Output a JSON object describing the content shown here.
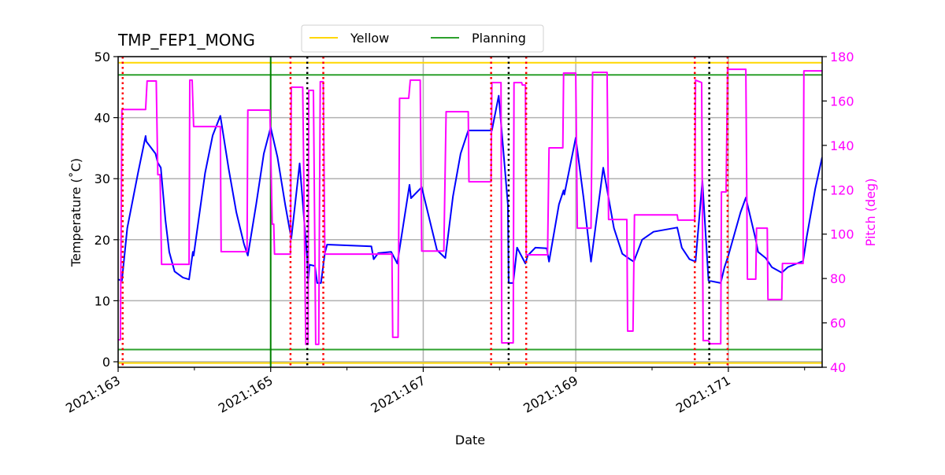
{
  "chart_data": {
    "type": "line",
    "title": "TMP_FEP1_MONG",
    "xlabel": "Date",
    "ylabel": "Temperature ($^\\circ$C)",
    "ylabel_display": "Temperature (˚C)",
    "y2label": "Pitch (deg)",
    "xlim": [
      163.0,
      172.23
    ],
    "ylim": [
      -0.9,
      50
    ],
    "y2lim": [
      40,
      180
    ],
    "grid": true,
    "legend_placement": "top-center",
    "x_ticks": [
      {
        "value": 163,
        "label": "2021:163"
      },
      {
        "value": 165,
        "label": "2021:165"
      },
      {
        "value": 167,
        "label": "2021:167"
      },
      {
        "value": 169,
        "label": "2021:169"
      },
      {
        "value": 171,
        "label": "2021:171"
      }
    ],
    "x_minor_ticks": [
      164,
      166,
      168,
      170,
      172
    ],
    "y_ticks": [
      0,
      10,
      20,
      30,
      40,
      50
    ],
    "y2_ticks": [
      40,
      60,
      80,
      100,
      120,
      140,
      160,
      180
    ],
    "colors": {
      "temperature": "#0000ff",
      "pitch": "#ff00ff",
      "yellow": "#ffd700",
      "planning": "#2ca02c",
      "grid": "#b0b0b0",
      "red_marker": "#ff0000",
      "black_marker": "#000000",
      "green_marker": "#008000"
    },
    "limits": [
      {
        "name": "Yellow",
        "color": "#ffd700",
        "values": [
          49,
          -0.2
        ]
      },
      {
        "name": "Planning",
        "color": "#2ca02c",
        "values": [
          47,
          2
        ]
      }
    ],
    "vertical_markers": {
      "red_dotted": [
        163.06,
        165.26,
        165.69,
        167.89,
        168.35,
        170.56,
        170.99
      ],
      "black_dotted": [
        165.48,
        168.12,
        170.75
      ],
      "green_solid": [
        165.0
      ]
    },
    "series": [
      {
        "axis": "left",
        "color": "#0000ff",
        "points": [
          [
            163.0,
            13.5
          ],
          [
            163.05,
            13.3
          ],
          [
            163.12,
            21.9
          ],
          [
            163.26,
            30.9
          ],
          [
            163.36,
            37.0
          ],
          [
            163.37,
            36.1
          ],
          [
            163.49,
            34.1
          ],
          [
            163.52,
            32.6
          ],
          [
            163.56,
            31.8
          ],
          [
            163.62,
            23.2
          ],
          [
            163.67,
            18.0
          ],
          [
            163.74,
            14.8
          ],
          [
            163.85,
            13.8
          ],
          [
            163.93,
            13.5
          ],
          [
            163.98,
            18.0
          ],
          [
            163.99,
            17.4
          ],
          [
            164.14,
            30.9
          ],
          [
            164.24,
            37.1
          ],
          [
            164.34,
            40.3
          ],
          [
            164.45,
            31.6
          ],
          [
            164.55,
            24.5
          ],
          [
            164.65,
            19.3
          ],
          [
            164.7,
            17.4
          ],
          [
            164.81,
            25.8
          ],
          [
            164.91,
            34.1
          ],
          [
            165.0,
            38.4
          ],
          [
            165.09,
            33.5
          ],
          [
            165.19,
            25.8
          ],
          [
            165.27,
            20.2
          ],
          [
            165.38,
            32.5
          ],
          [
            165.48,
            16.8
          ],
          [
            165.49,
            12.9
          ],
          [
            165.51,
            15.9
          ],
          [
            165.58,
            15.7
          ],
          [
            165.61,
            12.9
          ],
          [
            165.66,
            12.9
          ],
          [
            165.71,
            17.8
          ],
          [
            165.74,
            19.2
          ],
          [
            166.32,
            18.9
          ],
          [
            166.35,
            16.8
          ],
          [
            166.41,
            17.8
          ],
          [
            166.58,
            18.0
          ],
          [
            166.66,
            16.1
          ],
          [
            166.82,
            29.0
          ],
          [
            166.84,
            26.8
          ],
          [
            166.98,
            28.6
          ],
          [
            167.11,
            21.9
          ],
          [
            167.18,
            18.3
          ],
          [
            167.29,
            17.0
          ],
          [
            167.39,
            27.1
          ],
          [
            167.49,
            34.1
          ],
          [
            167.59,
            37.9
          ],
          [
            167.9,
            37.9
          ],
          [
            167.99,
            43.6
          ],
          [
            168.11,
            25.8
          ],
          [
            168.12,
            12.9
          ],
          [
            168.18,
            12.9
          ],
          [
            168.23,
            18.7
          ],
          [
            168.34,
            16.1
          ],
          [
            168.37,
            17.4
          ],
          [
            168.47,
            18.7
          ],
          [
            168.62,
            18.6
          ],
          [
            168.65,
            16.4
          ],
          [
            168.78,
            25.8
          ],
          [
            168.84,
            28.1
          ],
          [
            168.85,
            27.4
          ],
          [
            169.0,
            36.7
          ],
          [
            169.1,
            27.1
          ],
          [
            169.2,
            16.4
          ],
          [
            169.36,
            31.8
          ],
          [
            169.5,
            21.9
          ],
          [
            169.61,
            17.7
          ],
          [
            169.71,
            16.8
          ],
          [
            169.76,
            16.4
          ],
          [
            169.87,
            20.0
          ],
          [
            170.02,
            21.3
          ],
          [
            170.33,
            22.0
          ],
          [
            170.39,
            18.7
          ],
          [
            170.49,
            16.8
          ],
          [
            170.57,
            16.4
          ],
          [
            170.66,
            29.6
          ],
          [
            170.74,
            13.3
          ],
          [
            170.9,
            12.9
          ],
          [
            170.95,
            15.5
          ],
          [
            171.0,
            17.4
          ],
          [
            171.16,
            24.5
          ],
          [
            171.23,
            26.9
          ],
          [
            171.36,
            20.0
          ],
          [
            171.39,
            18.0
          ],
          [
            171.49,
            17.0
          ],
          [
            171.57,
            15.5
          ],
          [
            171.7,
            14.6
          ],
          [
            171.78,
            15.5
          ],
          [
            171.98,
            16.5
          ],
          [
            172.03,
            20.6
          ],
          [
            172.14,
            28.4
          ],
          [
            172.23,
            33.5
          ]
        ]
      },
      {
        "axis": "right",
        "color": "#ff00ff",
        "points": [
          [
            163.0,
            52.4
          ],
          [
            163.03,
            52.4
          ],
          [
            163.05,
            156.2
          ],
          [
            163.36,
            156.2
          ],
          [
            163.38,
            169.0
          ],
          [
            163.5,
            169.0
          ],
          [
            163.52,
            126.8
          ],
          [
            163.55,
            126.8
          ],
          [
            163.57,
            86.4
          ],
          [
            163.93,
            86.4
          ],
          [
            163.94,
            169.4
          ],
          [
            163.97,
            169.4
          ],
          [
            163.99,
            148.5
          ],
          [
            164.34,
            148.5
          ],
          [
            164.35,
            92.1
          ],
          [
            164.69,
            92.1
          ],
          [
            164.7,
            155.9
          ],
          [
            164.99,
            155.9
          ],
          [
            165.02,
            104.5
          ],
          [
            165.04,
            104.5
          ],
          [
            165.05,
            91.0
          ],
          [
            165.26,
            91.0
          ],
          [
            165.27,
            166.2
          ],
          [
            165.42,
            166.2
          ],
          [
            165.46,
            50.3
          ],
          [
            165.49,
            50.3
          ],
          [
            165.5,
            164.8
          ],
          [
            165.56,
            164.8
          ],
          [
            165.59,
            50.3
          ],
          [
            165.63,
            50.3
          ],
          [
            165.65,
            168.7
          ],
          [
            165.69,
            168.7
          ],
          [
            165.71,
            91.0
          ],
          [
            166.59,
            91.0
          ],
          [
            166.6,
            53.5
          ],
          [
            166.67,
            53.5
          ],
          [
            166.69,
            161.2
          ],
          [
            166.81,
            161.2
          ],
          [
            166.83,
            169.4
          ],
          [
            166.96,
            169.4
          ],
          [
            166.98,
            92.4
          ],
          [
            167.27,
            92.4
          ],
          [
            167.3,
            155.2
          ],
          [
            167.59,
            155.2
          ],
          [
            167.6,
            123.6
          ],
          [
            167.89,
            123.6
          ],
          [
            167.9,
            168.3
          ],
          [
            168.02,
            168.3
          ],
          [
            168.03,
            51.0
          ],
          [
            168.18,
            51.0
          ],
          [
            168.19,
            168.3
          ],
          [
            168.29,
            168.3
          ],
          [
            168.3,
            167.2
          ],
          [
            168.34,
            167.2
          ],
          [
            168.35,
            90.7
          ],
          [
            168.63,
            90.7
          ],
          [
            168.65,
            138.9
          ],
          [
            168.83,
            138.9
          ],
          [
            168.84,
            172.6
          ],
          [
            169.0,
            172.6
          ],
          [
            169.02,
            102.7
          ],
          [
            169.2,
            102.7
          ],
          [
            169.22,
            172.9
          ],
          [
            169.41,
            172.9
          ],
          [
            169.43,
            106.6
          ],
          [
            169.67,
            106.6
          ],
          [
            169.68,
            56.3
          ],
          [
            169.75,
            56.3
          ],
          [
            169.77,
            108.7
          ],
          [
            170.33,
            108.7
          ],
          [
            170.34,
            106.3
          ],
          [
            170.56,
            106.3
          ],
          [
            170.57,
            169.4
          ],
          [
            170.65,
            168.3
          ],
          [
            170.67,
            52.0
          ],
          [
            170.74,
            52.0
          ],
          [
            170.76,
            50.6
          ],
          [
            170.9,
            50.6
          ],
          [
            170.91,
            119.0
          ],
          [
            170.97,
            119.0
          ],
          [
            170.99,
            174.3
          ],
          [
            171.23,
            174.3
          ],
          [
            171.25,
            79.7
          ],
          [
            171.36,
            79.7
          ],
          [
            171.37,
            102.7
          ],
          [
            171.51,
            102.7
          ],
          [
            171.52,
            70.5
          ],
          [
            171.7,
            70.5
          ],
          [
            171.71,
            86.8
          ],
          [
            171.98,
            86.8
          ],
          [
            171.99,
            173.6
          ],
          [
            172.23,
            173.6
          ]
        ]
      }
    ]
  }
}
